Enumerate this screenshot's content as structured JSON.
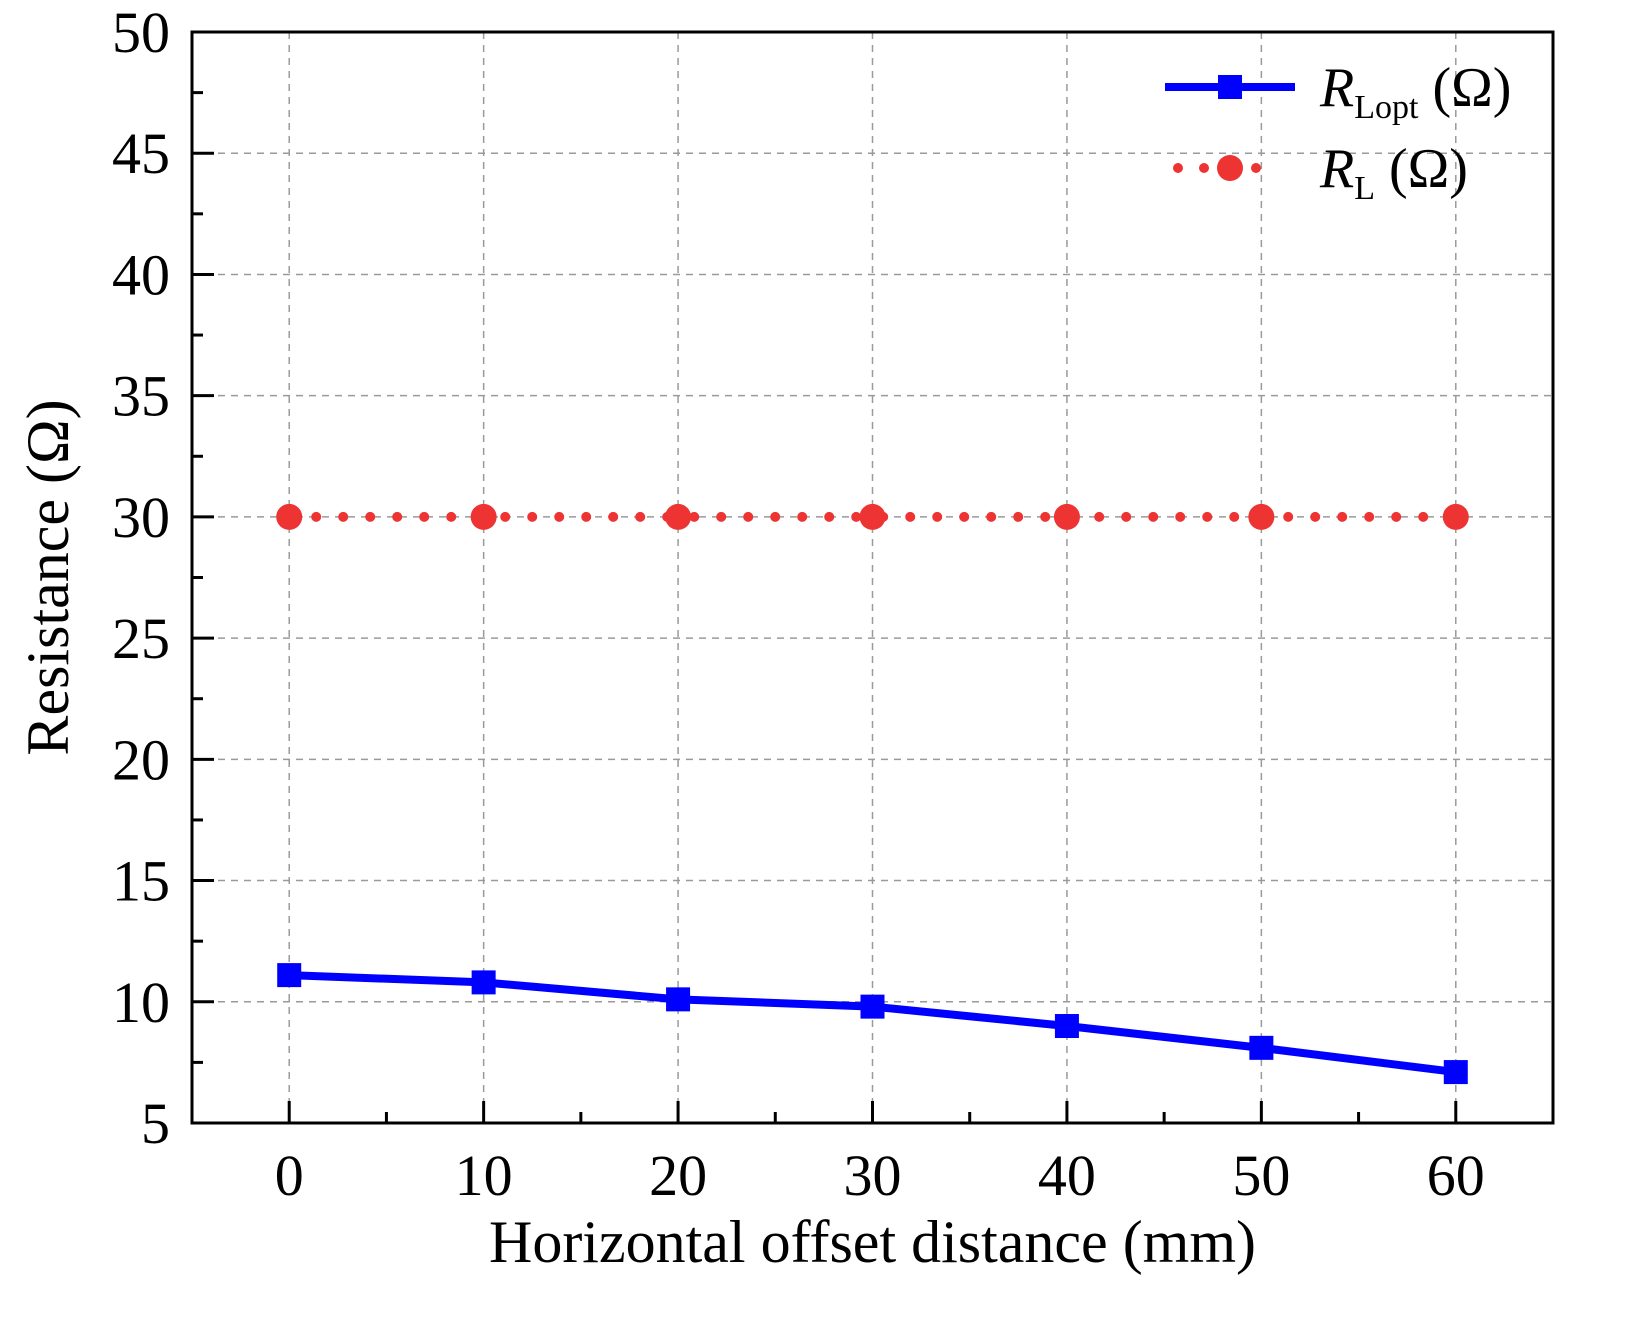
{
  "chart_data": {
    "type": "line",
    "xlabel": "Horizontal offset distance (mm)",
    "ylabel": "Resistance (Ω)",
    "xlim": [
      -5,
      65
    ],
    "ylim": [
      5,
      50
    ],
    "x_ticks": [
      0,
      10,
      20,
      30,
      40,
      50,
      60
    ],
    "y_ticks": [
      5,
      10,
      15,
      20,
      25,
      30,
      35,
      40,
      45,
      50
    ],
    "x_tick_labels": [
      "0",
      "10",
      "20",
      "30",
      "40",
      "50",
      "60"
    ],
    "y_tick_labels": [
      "5",
      "10",
      "15",
      "20",
      "25",
      "30",
      "35",
      "40",
      "45",
      "50"
    ],
    "grid": true,
    "legend_position": "top-right",
    "x": [
      0,
      10,
      20,
      30,
      40,
      50,
      60
    ],
    "series": [
      {
        "name": "R_Lopt (Ω)",
        "legend_main": "R",
        "legend_sub": "Lopt",
        "legend_unit": " (Ω)",
        "color": "#0000ff",
        "marker": "square",
        "line_style": "solid",
        "values": [
          11.1,
          10.8,
          10.1,
          9.8,
          9.0,
          8.1,
          7.1
        ]
      },
      {
        "name": "R_L (Ω)",
        "legend_main": "R",
        "legend_sub": "L",
        "legend_unit": " (Ω)",
        "color": "#ee3333",
        "marker": "circle",
        "line_style": "dotted",
        "values": [
          30,
          30,
          30,
          30,
          30,
          30,
          30
        ]
      }
    ]
  }
}
